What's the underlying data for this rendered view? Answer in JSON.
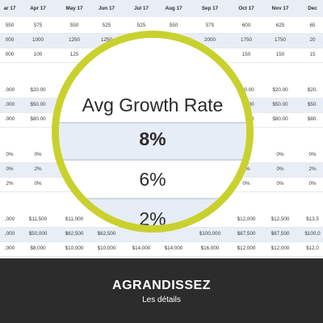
{
  "sheet": {
    "months": [
      "ar 17",
      "Apr 17",
      "May 17",
      "Jun 17",
      "Jul 17",
      "Aug 17",
      "Sep 17",
      "Oct 17",
      "Nov 17",
      "Dec"
    ],
    "groups": [
      {
        "rows": [
          [
            "550",
            "575",
            "550",
            "525",
            "525",
            "550",
            "575",
            "600",
            "625",
            "65"
          ],
          [
            "000",
            "1000",
            "1250",
            "1250",
            "",
            "",
            "2000",
            "1750",
            "1750",
            "20"
          ],
          [
            "000",
            "100",
            "125",
            "",
            "",
            "",
            "",
            "150",
            "150",
            "15"
          ]
        ]
      },
      {
        "rows": [
          [
            ".000",
            "$20.00",
            "",
            "",
            "",
            "",
            "",
            "$20.00",
            "$20.00",
            "$20."
          ],
          [
            ".000",
            "$50.00",
            "",
            "",
            "",
            "",
            "",
            "$50.00",
            "$50.00",
            "$50."
          ],
          [
            ".000",
            "$80.00",
            "",
            "",
            "",
            "",
            "",
            "$80.00",
            "$80.00",
            "$80."
          ]
        ]
      },
      {
        "rows": [
          [
            "0%",
            "0%",
            "",
            "",
            "",
            "",
            "",
            "1%",
            "0%",
            "0%"
          ],
          [
            "0%",
            "2%",
            "",
            "",
            "",
            "",
            "",
            "0%",
            "0%",
            "2%"
          ],
          [
            "2%",
            "0%",
            "",
            "",
            "",
            "",
            "",
            "0%",
            "0%",
            "0%"
          ]
        ]
      },
      {
        "rows": [
          [
            ",000",
            "$11,500",
            "$11,000",
            "",
            "",
            "",
            "",
            "$12,000",
            "$12,500",
            "$13,5"
          ],
          [
            ",000",
            "$50,000",
            "$62,500",
            "$62,500",
            "",
            "",
            "$100,000",
            "$87,500",
            "$87,500",
            "$100,0"
          ],
          [
            ",000",
            "$8,000",
            "$10,000",
            "$10,000",
            "$14,000",
            "$14,000",
            "$16,000",
            "$12,000",
            "$12,000",
            "$12,0"
          ]
        ]
      }
    ]
  },
  "magnifier": {
    "title": "Avg Growth Rate",
    "values": [
      "8%",
      "6%",
      "2%"
    ]
  },
  "footer": {
    "title": "AGRANDISSEZ",
    "subtitle": "Les détails"
  },
  "colors": {
    "ring": "#c9d12e",
    "footer_bg": "#2c2c2c",
    "band": "#e9eef6"
  }
}
